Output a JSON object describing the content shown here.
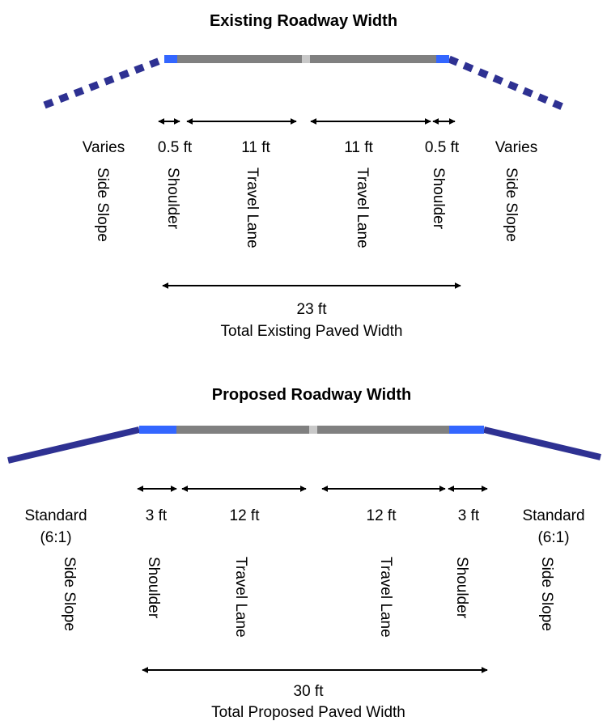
{
  "colors": {
    "pavement": "#808080",
    "centerline": "#c8c8c8",
    "shoulder": "#3366ff",
    "slope": "#2e3192",
    "arrow": "#000000"
  },
  "existing": {
    "title": "Existing Roadway Width",
    "dimensions": [
      "Varies",
      "0.5 ft",
      "11 ft",
      "11 ft",
      "0.5 ft",
      "Varies"
    ],
    "elements": [
      "Side Slope",
      "Shoulder",
      "Travel Lane",
      "Travel Lane",
      "Shoulder",
      "Side Slope"
    ],
    "total_value": "23 ft",
    "total_label": "Total Existing Paved Width"
  },
  "proposed": {
    "title": "Proposed Roadway Width",
    "slope_dimension_line1": "Standard",
    "slope_dimension_line2": "(6:1)",
    "dimensions": [
      "3 ft",
      "12 ft",
      "12 ft",
      "3 ft"
    ],
    "elements": [
      "Side Slope",
      "Shoulder",
      "Travel Lane",
      "Travel Lane",
      "Shoulder",
      "Side Slope"
    ],
    "total_value": "30 ft",
    "total_label": "Total Proposed Paved Width"
  }
}
